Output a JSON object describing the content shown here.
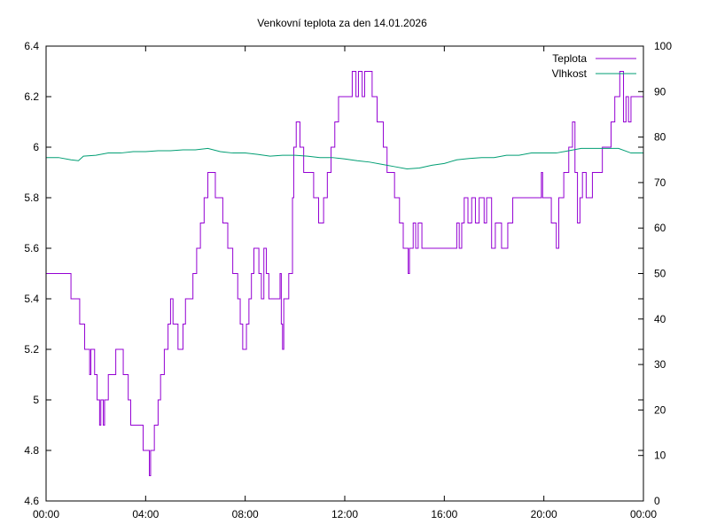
{
  "colors": {
    "teplota": "#9400d3",
    "vlhkost": "#009e73",
    "axis": "#000000"
  },
  "chart_data": {
    "type": "line",
    "title": "Venkovní teplota za den 14.01.2026",
    "xlabel": "",
    "ylabel": "",
    "y2label": "",
    "grid": false,
    "legend_position": "top-right",
    "x_unit": "hours",
    "xlim": [
      0,
      24
    ],
    "ylim": [
      4.6,
      6.4
    ],
    "y2lim": [
      0,
      100
    ],
    "x_ticks": [
      0,
      4,
      8,
      12,
      16,
      20,
      24
    ],
    "x_tick_labels": [
      "00:00",
      "04:00",
      "08:00",
      "12:00",
      "16:00",
      "20:00",
      "00:00"
    ],
    "y_tick_labels": [
      "4.6",
      "4.8",
      "5",
      "5.2",
      "5.4",
      "5.6",
      "5.8",
      "6",
      "6.2",
      "6.4"
    ],
    "y2_tick_labels": [
      "0",
      "10",
      "20",
      "30",
      "40",
      "50",
      "60",
      "70",
      "80",
      "90",
      "100"
    ],
    "series": [
      {
        "name": "Teplota",
        "axis": "left",
        "step": true,
        "points": [
          [
            0.0,
            5.5
          ],
          [
            1.0,
            5.4
          ],
          [
            1.35,
            5.3
          ],
          [
            1.55,
            5.2
          ],
          [
            1.75,
            5.1
          ],
          [
            1.8,
            5.2
          ],
          [
            1.95,
            5.1
          ],
          [
            2.05,
            5.0
          ],
          [
            2.15,
            4.9
          ],
          [
            2.2,
            5.0
          ],
          [
            2.3,
            4.9
          ],
          [
            2.35,
            5.0
          ],
          [
            2.5,
            5.1
          ],
          [
            2.8,
            5.2
          ],
          [
            3.1,
            5.1
          ],
          [
            3.3,
            5.0
          ],
          [
            3.4,
            4.9
          ],
          [
            3.9,
            4.8
          ],
          [
            4.15,
            4.7
          ],
          [
            4.2,
            4.8
          ],
          [
            4.35,
            4.9
          ],
          [
            4.5,
            5.0
          ],
          [
            4.6,
            5.1
          ],
          [
            4.75,
            5.2
          ],
          [
            4.9,
            5.3
          ],
          [
            5.0,
            5.4
          ],
          [
            5.1,
            5.3
          ],
          [
            5.3,
            5.2
          ],
          [
            5.5,
            5.3
          ],
          [
            5.6,
            5.4
          ],
          [
            5.9,
            5.5
          ],
          [
            6.05,
            5.6
          ],
          [
            6.2,
            5.7
          ],
          [
            6.35,
            5.8
          ],
          [
            6.5,
            5.9
          ],
          [
            6.8,
            5.8
          ],
          [
            7.1,
            5.7
          ],
          [
            7.3,
            5.6
          ],
          [
            7.5,
            5.5
          ],
          [
            7.7,
            5.4
          ],
          [
            7.8,
            5.3
          ],
          [
            7.9,
            5.2
          ],
          [
            8.05,
            5.3
          ],
          [
            8.15,
            5.4
          ],
          [
            8.25,
            5.5
          ],
          [
            8.35,
            5.6
          ],
          [
            8.55,
            5.5
          ],
          [
            8.65,
            5.4
          ],
          [
            8.75,
            5.6
          ],
          [
            8.85,
            5.5
          ],
          [
            8.95,
            5.4
          ],
          [
            9.4,
            5.5
          ],
          [
            9.45,
            5.3
          ],
          [
            9.5,
            5.2
          ],
          [
            9.55,
            5.4
          ],
          [
            9.75,
            5.5
          ],
          [
            9.9,
            5.8
          ],
          [
            9.95,
            6.0
          ],
          [
            10.05,
            6.1
          ],
          [
            10.2,
            6.0
          ],
          [
            10.35,
            5.9
          ],
          [
            10.75,
            5.8
          ],
          [
            10.95,
            5.7
          ],
          [
            11.15,
            5.8
          ],
          [
            11.3,
            5.9
          ],
          [
            11.45,
            6.0
          ],
          [
            11.6,
            6.1
          ],
          [
            11.75,
            6.2
          ],
          [
            12.0,
            6.2
          ],
          [
            12.3,
            6.3
          ],
          [
            12.45,
            6.2
          ],
          [
            12.55,
            6.3
          ],
          [
            12.7,
            6.2
          ],
          [
            12.8,
            6.3
          ],
          [
            13.1,
            6.2
          ],
          [
            13.3,
            6.1
          ],
          [
            13.55,
            6.0
          ],
          [
            13.7,
            5.9
          ],
          [
            14.0,
            5.8
          ],
          [
            14.2,
            5.7
          ],
          [
            14.35,
            5.6
          ],
          [
            14.55,
            5.5
          ],
          [
            14.6,
            5.6
          ],
          [
            14.75,
            5.7
          ],
          [
            14.85,
            5.6
          ],
          [
            14.95,
            5.7
          ],
          [
            15.1,
            5.6
          ],
          [
            16.3,
            5.6
          ],
          [
            16.5,
            5.7
          ],
          [
            16.6,
            5.6
          ],
          [
            16.7,
            5.7
          ],
          [
            16.8,
            5.8
          ],
          [
            16.95,
            5.7
          ],
          [
            17.1,
            5.8
          ],
          [
            17.25,
            5.7
          ],
          [
            17.4,
            5.8
          ],
          [
            17.6,
            5.7
          ],
          [
            17.7,
            5.8
          ],
          [
            17.9,
            5.6
          ],
          [
            18.05,
            5.7
          ],
          [
            18.3,
            5.6
          ],
          [
            18.55,
            5.7
          ],
          [
            18.75,
            5.8
          ],
          [
            19.9,
            5.9
          ],
          [
            19.95,
            5.8
          ],
          [
            20.3,
            5.7
          ],
          [
            20.5,
            5.6
          ],
          [
            20.6,
            5.8
          ],
          [
            20.8,
            5.9
          ],
          [
            21.0,
            6.0
          ],
          [
            21.15,
            6.1
          ],
          [
            21.25,
            5.9
          ],
          [
            21.35,
            5.7
          ],
          [
            21.45,
            5.8
          ],
          [
            21.55,
            5.9
          ],
          [
            21.7,
            5.8
          ],
          [
            21.95,
            5.9
          ],
          [
            22.35,
            6.0
          ],
          [
            22.7,
            6.1
          ],
          [
            22.85,
            6.2
          ],
          [
            23.05,
            6.3
          ],
          [
            23.2,
            6.1
          ],
          [
            23.3,
            6.2
          ],
          [
            23.4,
            6.1
          ],
          [
            23.5,
            6.2
          ],
          [
            24.0,
            6.2
          ]
        ]
      },
      {
        "name": "Vlhkost",
        "axis": "right",
        "step": false,
        "points": [
          [
            0.0,
            75.5
          ],
          [
            0.5,
            75.5
          ],
          [
            1.0,
            75.0
          ],
          [
            1.3,
            74.8
          ],
          [
            1.5,
            75.8
          ],
          [
            2.0,
            76.0
          ],
          [
            2.5,
            76.5
          ],
          [
            3.0,
            76.5
          ],
          [
            3.5,
            76.8
          ],
          [
            4.0,
            76.8
          ],
          [
            4.5,
            77.0
          ],
          [
            5.0,
            77.0
          ],
          [
            5.5,
            77.2
          ],
          [
            6.0,
            77.2
          ],
          [
            6.5,
            77.5
          ],
          [
            7.0,
            76.8
          ],
          [
            7.5,
            76.5
          ],
          [
            8.0,
            76.5
          ],
          [
            8.5,
            76.2
          ],
          [
            9.0,
            75.8
          ],
          [
            9.5,
            76.0
          ],
          [
            10.0,
            76.0
          ],
          [
            10.5,
            75.8
          ],
          [
            11.0,
            75.5
          ],
          [
            11.5,
            75.5
          ],
          [
            12.0,
            75.2
          ],
          [
            12.5,
            74.8
          ],
          [
            13.0,
            74.5
          ],
          [
            13.5,
            74.0
          ],
          [
            14.0,
            73.5
          ],
          [
            14.5,
            73.0
          ],
          [
            15.0,
            73.2
          ],
          [
            15.5,
            73.8
          ],
          [
            16.0,
            74.2
          ],
          [
            16.5,
            75.0
          ],
          [
            17.0,
            75.3
          ],
          [
            17.5,
            75.5
          ],
          [
            18.0,
            75.5
          ],
          [
            18.5,
            76.0
          ],
          [
            19.0,
            76.0
          ],
          [
            19.5,
            76.5
          ],
          [
            20.0,
            76.5
          ],
          [
            20.5,
            76.5
          ],
          [
            21.0,
            77.0
          ],
          [
            21.5,
            77.5
          ],
          [
            22.0,
            77.5
          ],
          [
            22.5,
            77.5
          ],
          [
            23.0,
            77.5
          ],
          [
            23.5,
            76.5
          ],
          [
            24.0,
            76.5
          ]
        ]
      }
    ]
  }
}
